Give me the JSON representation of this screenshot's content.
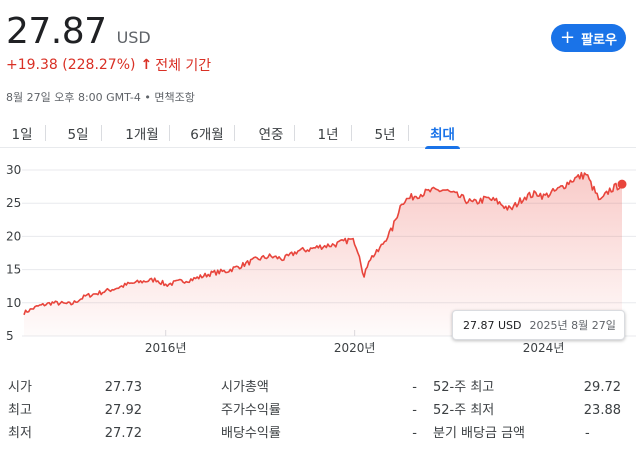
{
  "quote": {
    "price": "27.87",
    "currency": "USD",
    "change": "+19.38 (228.27%)",
    "change_arrow": "↑",
    "change_period": "전체 기간",
    "timestamp": "8월 27일 오후 8:00 GMT-4 • 면책조항",
    "change_color": "#d93025"
  },
  "follow_button": {
    "icon": "plus-icon",
    "label": "팔로우",
    "color": "#1a73e8"
  },
  "tabs": [
    "1일",
    "5일",
    "1개월",
    "6개월",
    "연중",
    "1년",
    "5년",
    "최대"
  ],
  "active_tab": "최대",
  "tooltip": {
    "value": "27.87 USD",
    "date": "2025년 8월 27일"
  },
  "chart_data": {
    "type": "area",
    "line_color": "#e8453c",
    "y_ticks": [
      "30",
      "25",
      "20",
      "15",
      "10",
      "5"
    ],
    "x_ticks": [
      "2016년",
      "2020년",
      "2024년"
    ],
    "ylim": [
      5,
      30
    ],
    "xlim": [
      2013.0,
      2025.66
    ],
    "grid": "horizontal",
    "series": [
      {
        "x": [
          2013.0,
          2013.3,
          2013.6,
          2014.0,
          2014.3,
          2014.6,
          2015.0,
          2015.2,
          2015.5,
          2015.8,
          2016.0,
          2016.3,
          2016.6,
          2017.0,
          2017.3,
          2017.6,
          2017.9,
          2018.2,
          2018.5,
          2018.8,
          2019.0,
          2019.3,
          2019.6,
          2019.9,
          2020.0,
          2020.1,
          2020.2,
          2020.3,
          2020.5,
          2020.8,
          2021.0,
          2021.3,
          2021.6,
          2021.9,
          2022.2,
          2022.5,
          2022.8,
          2023.0,
          2023.3,
          2023.6,
          2023.9,
          2024.0,
          2024.3,
          2024.6,
          2024.9,
          2025.0,
          2025.2,
          2025.4,
          2025.66
        ],
        "y": [
          8.5,
          9.5,
          10.0,
          9.8,
          11.0,
          11.5,
          12.3,
          12.8,
          13.2,
          13.5,
          12.7,
          13.2,
          13.6,
          14.5,
          14.8,
          15.6,
          16.5,
          17.0,
          16.6,
          17.8,
          18.0,
          18.5,
          18.8,
          19.5,
          19.2,
          17.3,
          13.8,
          16.5,
          17.8,
          21.2,
          25.2,
          26.2,
          26.8,
          27.0,
          26.0,
          25.0,
          25.7,
          25.3,
          24.0,
          26.0,
          26.5,
          26.0,
          27.0,
          28.5,
          29.4,
          27.9,
          25.2,
          27.0,
          27.87
        ]
      }
    ]
  },
  "stats": [
    {
      "label": "시가",
      "value": "27.73"
    },
    {
      "label": "최고",
      "value": "27.92"
    },
    {
      "label": "최저",
      "value": "27.72"
    },
    {
      "label": "시가총액",
      "value": "-"
    },
    {
      "label": "주가수익률",
      "value": "-"
    },
    {
      "label": "배당수익률",
      "value": "-"
    },
    {
      "label": "52-주 최고",
      "value": "29.72"
    },
    {
      "label": "52-주 최저",
      "value": "23.88"
    },
    {
      "label": "분기 배당금 금액",
      "value": "-"
    }
  ]
}
